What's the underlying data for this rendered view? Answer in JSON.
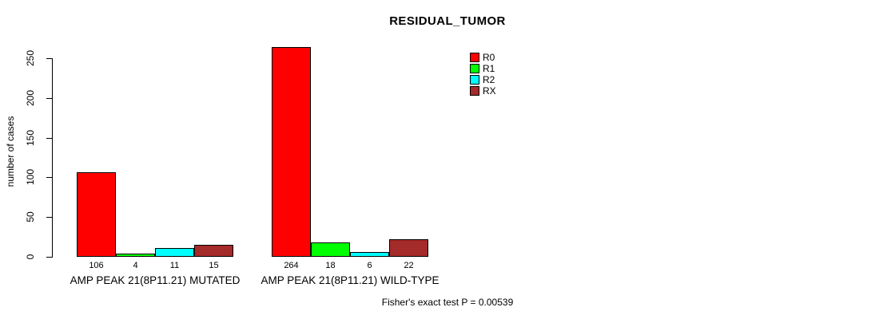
{
  "chart_data": {
    "type": "bar",
    "title": "RESIDUAL_TUMOR",
    "xlabel": "",
    "ylabel": "number of cases",
    "ylim": [
      0,
      250
    ],
    "yticks": [
      0,
      50,
      100,
      150,
      200,
      250
    ],
    "grid": false,
    "legend_position": "top-center-right",
    "categories": [
      "AMP PEAK 21(8P11.21) MUTATED",
      "AMP PEAK 21(8P11.21) WILD-TYPE"
    ],
    "series": [
      {
        "name": "R0",
        "color": "#FF0000",
        "values": [
          106,
          264
        ]
      },
      {
        "name": "R1",
        "color": "#00FF00",
        "values": [
          4,
          18
        ]
      },
      {
        "name": "R2",
        "color": "#00FFFF",
        "values": [
          11,
          6
        ]
      },
      {
        "name": "RX",
        "color": "#A52A2A",
        "values": [
          15,
          22
        ]
      }
    ],
    "bar_value_labels": [
      [
        "106",
        "4",
        "11",
        "15"
      ],
      [
        "264",
        "18",
        "6",
        "22"
      ]
    ],
    "annotation": "Fisher's exact test P = 0.00539"
  }
}
